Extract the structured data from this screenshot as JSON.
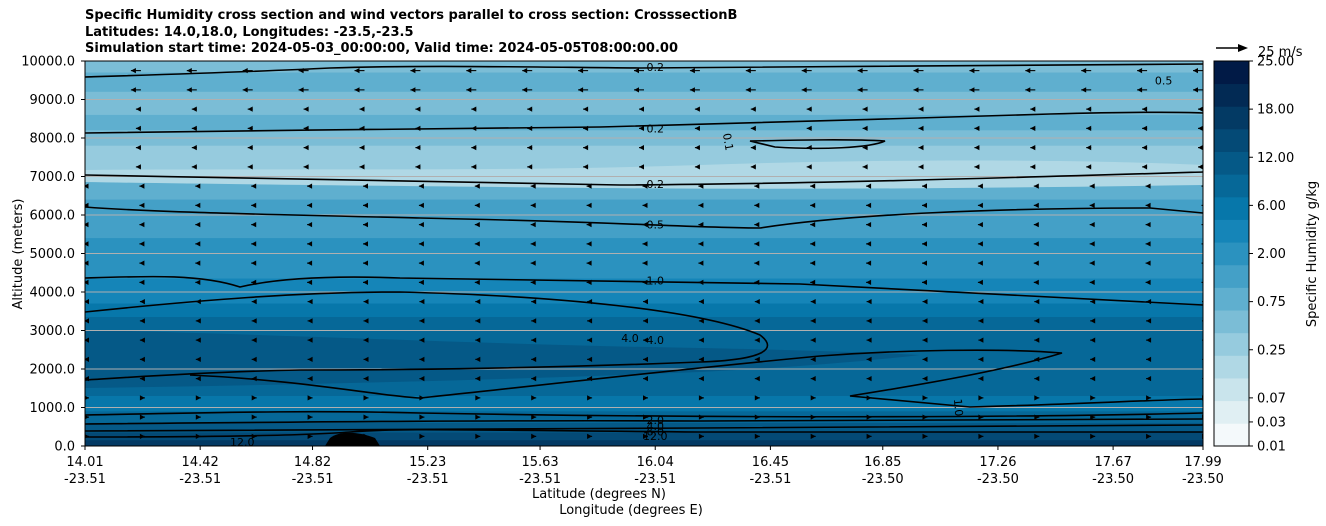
{
  "chart_data": {
    "type": "contour",
    "title_lines": [
      "Specific Humidity cross section and wind vectors parallel to cross section: CrosssectionB",
      "Latitudes: 14.0,18.0, Longitudes: -23.5,-23.5",
      "Simulation start time: 2024-05-03_00:00:00, Valid time: 2024-05-05T08:00:00.00"
    ],
    "ylabel": "Altitude (meters)",
    "xlabel_lat": "Latitude (degrees N)",
    "xlabel_lon": "Longitude (degrees E)",
    "ylim": [
      0,
      10000
    ],
    "yticks": [
      "0.0",
      "1000.0",
      "2000.0",
      "3000.0",
      "4000.0",
      "5000.0",
      "6000.0",
      "7000.0",
      "8000.0",
      "9000.0",
      "10000.0"
    ],
    "xticks": [
      {
        "lat": "14.01",
        "lon": "-23.51"
      },
      {
        "lat": "14.42",
        "lon": "-23.51"
      },
      {
        "lat": "14.82",
        "lon": "-23.51"
      },
      {
        "lat": "15.23",
        "lon": "-23.51"
      },
      {
        "lat": "15.63",
        "lon": "-23.51"
      },
      {
        "lat": "16.04",
        "lon": "-23.51"
      },
      {
        "lat": "16.45",
        "lon": "-23.51"
      },
      {
        "lat": "16.85",
        "lon": "-23.50"
      },
      {
        "lat": "17.26",
        "lon": "-23.50"
      },
      {
        "lat": "17.67",
        "lon": "-23.50"
      },
      {
        "lat": "17.99",
        "lon": "-23.50"
      }
    ],
    "colorbar": {
      "label": "Specific Humidity g/kg",
      "levels": [
        "0.01",
        "0.03",
        "0.07",
        "0.15",
        "0.25",
        "0.50",
        "0.75",
        "1.00",
        "2.00",
        "4.00",
        "6.00",
        "9.00",
        "12.00",
        "15.00",
        "18.00",
        "21.00",
        "25.00"
      ],
      "tick_labels": [
        "0.01",
        "0.03",
        "0.07",
        "0.25",
        "0.75",
        "2.00",
        "6.00",
        "12.00",
        "18.00",
        "25.00"
      ],
      "colors": [
        "#f4f9fb",
        "#e0eff3",
        "#c9e4ec",
        "#b0d8e5",
        "#96cbde",
        "#7bbdd6",
        "#5fafcf",
        "#44a0c7",
        "#2b92bf",
        "#1585b8",
        "#0777aa",
        "#066898",
        "#055987",
        "#044a76",
        "#033a64",
        "#022a54",
        "#011a46"
      ]
    },
    "contour_labels": [
      {
        "text": "0.2",
        "lat": 16.04,
        "alt": 9850
      },
      {
        "text": "0.5",
        "lat": 17.85,
        "alt": 9500
      },
      {
        "text": "0.2",
        "lat": 16.04,
        "alt": 8250
      },
      {
        "text": "0.1",
        "lat": 16.3,
        "alt": 7900,
        "rotate": 80
      },
      {
        "text": "0.2",
        "lat": 16.04,
        "alt": 6800
      },
      {
        "text": "0.5",
        "lat": 16.04,
        "alt": 5750
      },
      {
        "text": "1.0",
        "lat": 16.04,
        "alt": 4300
      },
      {
        "text": "4.0",
        "lat": 15.95,
        "alt": 2800
      },
      {
        "text": "4.0",
        "lat": 16.04,
        "alt": 2750
      },
      {
        "text": "1.0",
        "lat": 17.12,
        "alt": 1000,
        "rotate": 85
      },
      {
        "text": "2.0",
        "lat": 16.04,
        "alt": 680
      },
      {
        "text": "4.0",
        "lat": 16.04,
        "alt": 520
      },
      {
        "text": "6.0",
        "lat": 16.04,
        "alt": 380
      },
      {
        "text": "12.0",
        "lat": 16.04,
        "alt": 260
      },
      {
        "text": "12.0",
        "lat": 14.57,
        "alt": 100
      }
    ],
    "wind_key": {
      "label": "25 m/s"
    }
  }
}
